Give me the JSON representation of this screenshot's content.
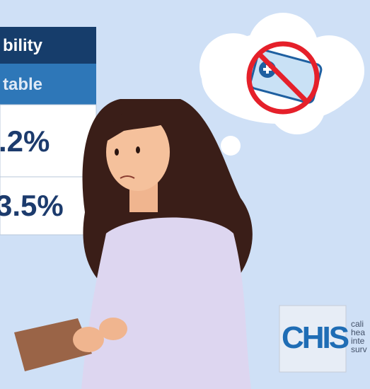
{
  "table": {
    "header": [
      "bility",
      "table"
    ],
    "rows": [
      [
        ".2%"
      ],
      [
        "3.5%"
      ]
    ]
  },
  "logo": {
    "acronym": "CHIS",
    "lines": [
      "cali",
      "hea",
      "inte",
      "surv"
    ]
  }
}
